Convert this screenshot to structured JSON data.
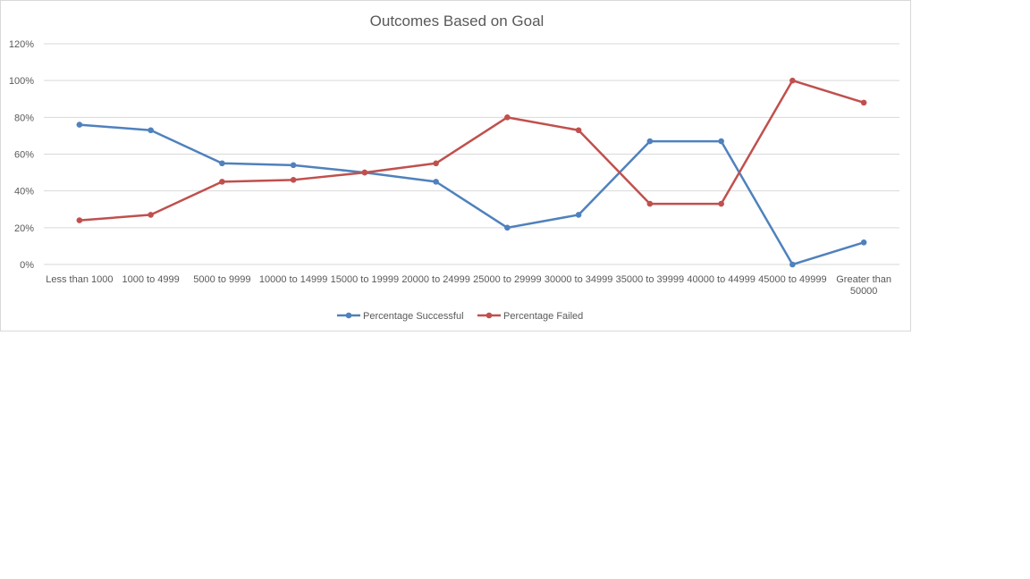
{
  "chart_data": {
    "type": "line",
    "title": "Outcomes Based on Goal",
    "xlabel": "",
    "ylabel": "",
    "categories": [
      [
        "Less than 1000"
      ],
      [
        "1000 to 4999"
      ],
      [
        "5000 to 9999"
      ],
      [
        "10000 to 14999"
      ],
      [
        "15000 to 19999"
      ],
      [
        "20000 to 24999"
      ],
      [
        "25000 to 29999"
      ],
      [
        "30000 to 34999"
      ],
      [
        "35000 to 39999"
      ],
      [
        "40000 to 44999"
      ],
      [
        "45000 to 49999"
      ],
      [
        "Greater than",
        "50000"
      ]
    ],
    "ylim": [
      0,
      120
    ],
    "yticks": [
      0,
      20,
      40,
      60,
      80,
      100,
      120
    ],
    "ytick_labels": [
      "0%",
      "20%",
      "40%",
      "60%",
      "80%",
      "100%",
      "120%"
    ],
    "grid": true,
    "legend_position": "bottom",
    "series": [
      {
        "name": "Percentage Successful",
        "color": "#4f81bd",
        "values": [
          76,
          73,
          55,
          54,
          50,
          45,
          20,
          27,
          67,
          67,
          0,
          12
        ]
      },
      {
        "name": "Percentage Failed",
        "color": "#c0504d",
        "values": [
          24,
          27,
          45,
          46,
          50,
          55,
          80,
          73,
          33,
          33,
          100,
          88
        ]
      }
    ]
  }
}
